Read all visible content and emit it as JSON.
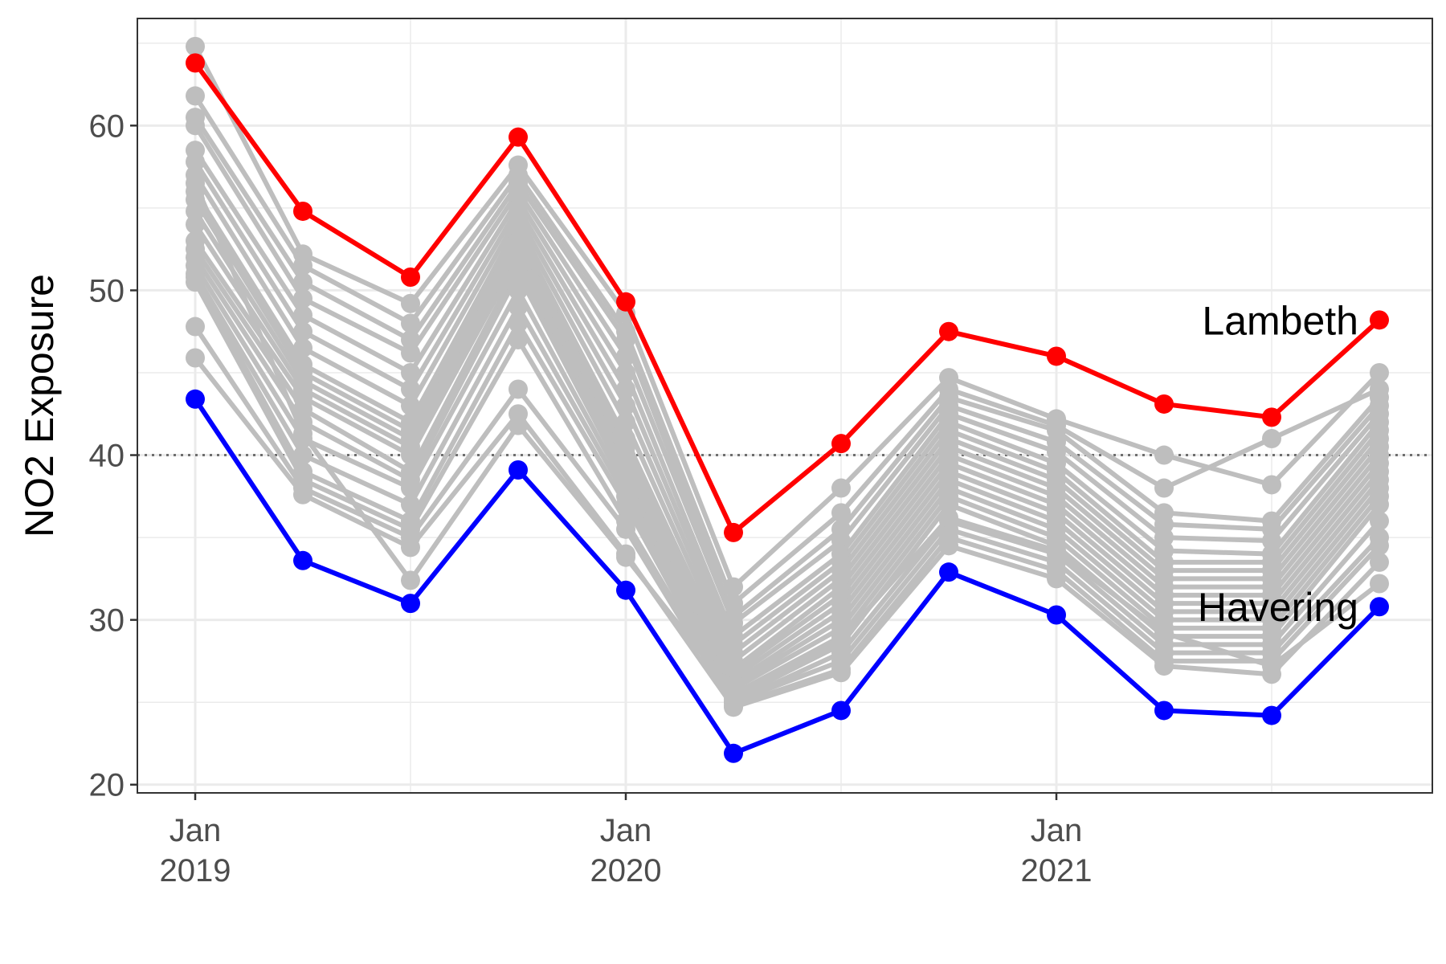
{
  "chart_data": {
    "type": "line",
    "title": "",
    "xlabel": "",
    "ylabel": "NO2 Exposure",
    "x": [
      "2019-01",
      "2019-04",
      "2019-07",
      "2019-10",
      "2020-01",
      "2020-04",
      "2020-07",
      "2020-10",
      "2021-01",
      "2021-04",
      "2021-07",
      "2021-10"
    ],
    "x_ticks": [
      {
        "at": "2019-01",
        "line1": "Jan",
        "line2": "2019"
      },
      {
        "at": "2020-01",
        "line1": "Jan",
        "line2": "2020"
      },
      {
        "at": "2021-01",
        "line1": "Jan",
        "line2": "2021"
      }
    ],
    "ylim": [
      19.5,
      66.5
    ],
    "y_ticks": [
      20,
      30,
      40,
      50,
      60
    ],
    "reference_line": 40,
    "grid": true,
    "series": [
      {
        "name": "Lambeth",
        "color": "#ff0000",
        "highlight": true,
        "values": [
          63.8,
          54.8,
          50.8,
          59.3,
          49.3,
          35.3,
          40.7,
          47.5,
          46.0,
          43.1,
          42.3,
          48.2
        ]
      },
      {
        "name": "Havering",
        "color": "#0000ff",
        "highlight": true,
        "values": [
          43.4,
          33.6,
          31.0,
          39.1,
          31.8,
          21.9,
          24.5,
          32.9,
          30.3,
          24.5,
          24.2,
          30.8
        ]
      },
      {
        "color": "#bebebe",
        "values": [
          64.8,
          52.2,
          49.2,
          57.6,
          48.6,
          32.0,
          38.0,
          44.7,
          42.2,
          40.0,
          38.2,
          45.0
        ]
      },
      {
        "color": "#bebebe",
        "values": [
          61.8,
          51.5,
          48.0,
          57.0,
          47.5,
          31.0,
          36.5,
          44.0,
          41.8,
          38.0,
          41.0,
          44.0
        ]
      },
      {
        "color": "#bebebe",
        "values": [
          60.5,
          50.5,
          47.0,
          56.5,
          47.0,
          30.2,
          35.5,
          43.5,
          41.5,
          36.5,
          36.0,
          43.5
        ]
      },
      {
        "color": "#bebebe",
        "values": [
          60.0,
          49.5,
          46.2,
          56.0,
          46.0,
          29.8,
          34.8,
          43.0,
          40.8,
          35.8,
          35.5,
          43.0
        ]
      },
      {
        "color": "#bebebe",
        "values": [
          58.5,
          48.5,
          45.0,
          55.5,
          45.0,
          29.0,
          34.0,
          42.5,
          40.2,
          35.0,
          34.8,
          42.5
        ]
      },
      {
        "color": "#bebebe",
        "values": [
          57.8,
          47.5,
          44.0,
          55.0,
          44.0,
          28.5,
          33.5,
          42.0,
          39.5,
          34.2,
          34.0,
          42.0
        ]
      },
      {
        "color": "#bebebe",
        "values": [
          57.0,
          46.5,
          43.0,
          54.5,
          43.0,
          28.0,
          33.0,
          41.5,
          39.0,
          33.5,
          33.5,
          41.5
        ]
      },
      {
        "color": "#bebebe",
        "values": [
          56.0,
          45.5,
          42.0,
          54.0,
          42.0,
          27.5,
          32.5,
          41.0,
          38.5,
          33.0,
          33.0,
          41.0
        ]
      },
      {
        "color": "#bebebe",
        "values": [
          55.5,
          45.0,
          41.5,
          53.5,
          41.0,
          27.0,
          32.0,
          40.5,
          38.0,
          32.5,
          32.5,
          40.5
        ]
      },
      {
        "color": "#bebebe",
        "values": [
          54.8,
          44.5,
          41.0,
          53.0,
          40.5,
          26.8,
          31.5,
          40.0,
          37.5,
          32.0,
          32.0,
          40.0
        ]
      },
      {
        "color": "#bebebe",
        "values": [
          54.0,
          44.0,
          40.5,
          52.5,
          40.0,
          26.5,
          31.0,
          39.5,
          37.0,
          31.5,
          31.5,
          39.5
        ]
      },
      {
        "color": "#bebebe",
        "values": [
          53.0,
          43.5,
          40.0,
          52.0,
          39.5,
          26.2,
          30.5,
          39.0,
          36.5,
          31.0,
          31.0,
          39.0
        ]
      },
      {
        "color": "#bebebe",
        "values": [
          52.5,
          42.8,
          39.0,
          51.5,
          39.0,
          26.0,
          30.0,
          38.5,
          36.0,
          30.5,
          30.5,
          38.5
        ]
      },
      {
        "color": "#bebebe",
        "values": [
          52.0,
          42.0,
          38.5,
          51.0,
          38.5,
          25.8,
          29.5,
          38.0,
          35.5,
          30.0,
          30.0,
          38.0
        ]
      },
      {
        "color": "#bebebe",
        "values": [
          51.5,
          41.0,
          38.0,
          50.0,
          38.0,
          25.5,
          29.0,
          37.5,
          35.0,
          29.5,
          29.5,
          37.5
        ]
      },
      {
        "color": "#bebebe",
        "values": [
          51.0,
          40.0,
          37.0,
          49.0,
          37.5,
          25.2,
          28.5,
          37.0,
          34.5,
          29.0,
          29.0,
          37.0
        ]
      },
      {
        "color": "#bebebe",
        "values": [
          50.8,
          39.0,
          36.0,
          48.0,
          37.0,
          25.0,
          28.0,
          36.0,
          34.0,
          28.5,
          28.5,
          36.0
        ]
      },
      {
        "color": "#bebebe",
        "values": [
          50.5,
          38.5,
          35.5,
          47.0,
          36.0,
          25.0,
          27.5,
          35.5,
          33.5,
          28.0,
          28.0,
          35.0
        ]
      },
      {
        "color": "#bebebe",
        "values": [
          47.8,
          38.0,
          35.0,
          44.0,
          35.5,
          24.8,
          27.0,
          35.0,
          33.0,
          27.5,
          27.5,
          34.5
        ]
      },
      {
        "color": "#bebebe",
        "values": [
          45.9,
          37.6,
          34.4,
          42.5,
          34.0,
          24.7,
          26.8,
          34.5,
          32.5,
          27.2,
          26.7,
          33.5
        ]
      },
      {
        "color": "#bebebe",
        "values": [
          56.5,
          41.3,
          32.4,
          41.8,
          33.8,
          25.5,
          28.8,
          36.2,
          34.2,
          29.2,
          27.2,
          32.2
        ]
      }
    ]
  }
}
